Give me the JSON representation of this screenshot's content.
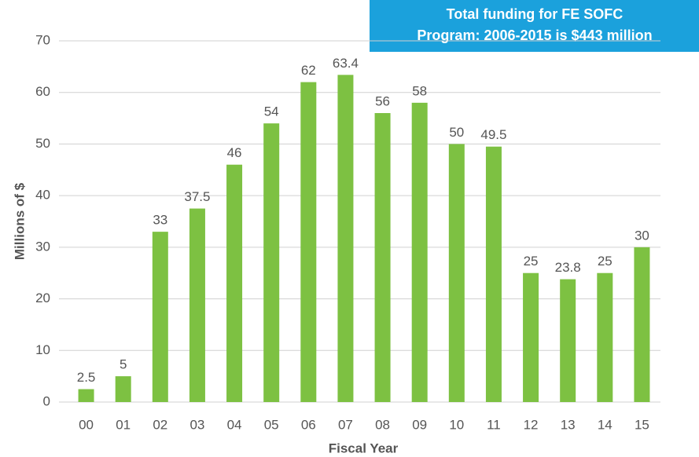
{
  "chart_data": {
    "type": "bar",
    "annotation": [
      "Total funding for FE SOFC",
      "Program: 2006-2015  is $443 million"
    ],
    "x_label": "Fiscal Year",
    "y_label": "Millions of $",
    "categories": [
      "00",
      "01",
      "02",
      "03",
      "04",
      "05",
      "06",
      "07",
      "08",
      "09",
      "10",
      "11",
      "12",
      "13",
      "14",
      "15"
    ],
    "values": [
      2.5,
      5,
      33,
      37.5,
      46,
      54,
      62,
      63.4,
      56,
      58,
      50,
      49.5,
      25,
      23.8,
      25,
      30
    ],
    "color": "#7dc142",
    "ylim": [
      0,
      70
    ],
    "yticks": [
      0,
      10,
      20,
      30,
      40,
      50,
      60,
      70
    ],
    "grid": true
  }
}
